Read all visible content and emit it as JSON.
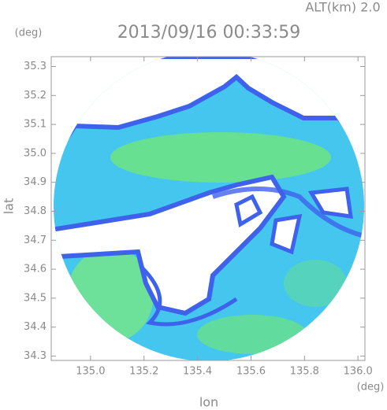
{
  "chart_data": {
    "type": "radar",
    "title": "2013/09/16 00:33:59",
    "subtitle": "ALT(km) 2.0",
    "xlabel": "lon",
    "ylabel": "lat",
    "xunit": "(deg)",
    "yunit": "(deg)",
    "xlim": [
      134.853,
      136.026
    ],
    "ylim": [
      34.285,
      35.334
    ],
    "xticks": [
      {
        "value": 135,
        "label": "135.0"
      },
      135.2,
      135.4,
      135.6,
      135.8,
      {
        "value": 136,
        "label": "136.0"
      }
    ],
    "yticks": [
      34.3,
      34.4,
      34.5,
      34.6,
      34.7,
      34.8,
      34.9,
      {
        "value": 35,
        "label": "35.0"
      },
      35.1,
      35.2,
      35.3
    ]
  }
}
